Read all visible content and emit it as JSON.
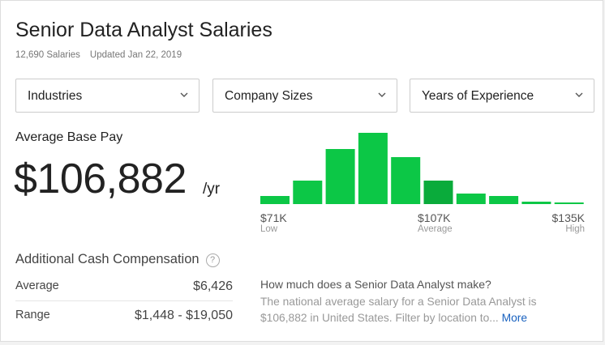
{
  "header": {
    "title": "Senior Data Analyst Salaries",
    "salary_count": "12,690 Salaries",
    "updated": "Updated Jan 22, 2019"
  },
  "filters": [
    {
      "label": "Industries"
    },
    {
      "label": "Company Sizes"
    },
    {
      "label": "Years of Experience"
    }
  ],
  "base_pay": {
    "label": "Average Base Pay",
    "value": "$106,882",
    "unit": "/yr"
  },
  "chart_data": {
    "type": "bar",
    "values": [
      10,
      29,
      68,
      88,
      58,
      29,
      13,
      10,
      3,
      2
    ],
    "highlight_index": 5,
    "colors": {
      "bar": "#0cc746",
      "highlight": "#0aab3b"
    },
    "labels": {
      "low": {
        "value": "$71K",
        "caption": "Low"
      },
      "avg": {
        "value": "$107K",
        "caption": "Average"
      },
      "high": {
        "value": "$135K",
        "caption": "High"
      }
    }
  },
  "additional": {
    "title": "Additional Cash Compensation",
    "help_icon": "?",
    "rows": [
      {
        "label": "Average",
        "value": "$6,426"
      },
      {
        "label": "Range",
        "value": "$1,448 - $19,050"
      }
    ]
  },
  "info": {
    "question": "How much does a Senior Data Analyst make?",
    "text": "The national average salary for a Senior Data Analyst is $106,882 in United States. Filter by location to...",
    "more": "More"
  }
}
